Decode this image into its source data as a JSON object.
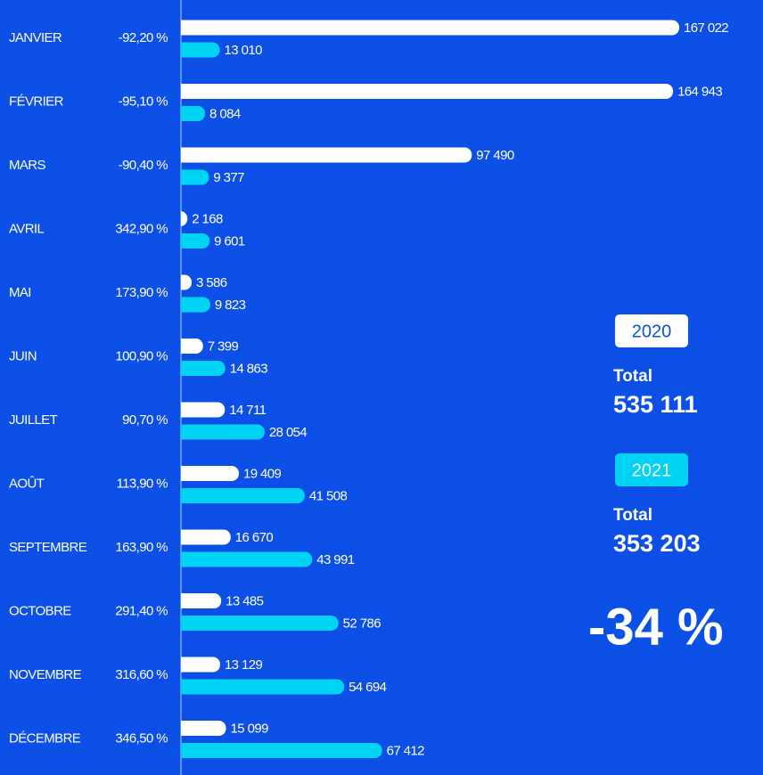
{
  "chart_data": {
    "type": "bar",
    "categories": [
      "JANVIER",
      "FÉVRIER",
      "MARS",
      "AVRIL",
      "MAI",
      "JUIN",
      "JUILLET",
      "AOÛT",
      "SEPTEMBRE",
      "OCTOBRE",
      "NOVEMBRE",
      "DÉCEMBRE"
    ],
    "changes": [
      "-92,20 %",
      "-95,10 %",
      "-90,40 %",
      "342,90 %",
      "173,90 %",
      "100,90 %",
      "90,70 %",
      "113,90 %",
      "163,90 %",
      "291,40 %",
      "316,60 %",
      "346,50 %"
    ],
    "series": [
      {
        "name": "2020",
        "color": "#ffffff",
        "values": [
          167022,
          164943,
          97490,
          2168,
          3586,
          7399,
          14711,
          19409,
          16670,
          13485,
          13129,
          15099
        ],
        "value_labels": [
          "167 022",
          "164 943",
          "97 490",
          "2 168",
          "3 586",
          "7 399",
          "14 711",
          "19 409",
          "16 670",
          "13 485",
          "13 129",
          "15 099"
        ],
        "total_label": "Total",
        "total": "535 111"
      },
      {
        "name": "2021",
        "color": "#00d4f5",
        "values": [
          13010,
          8084,
          9377,
          9601,
          9823,
          14863,
          28054,
          41508,
          43991,
          52786,
          54694,
          67412
        ],
        "value_labels": [
          "13 010",
          "8 084",
          "9 377",
          "9 601",
          "9 823",
          "14 863",
          "28 054",
          "41 508",
          "43 991",
          "52 786",
          "54 694",
          "67 412"
        ],
        "total_label": "Total",
        "total": "353 203"
      }
    ],
    "summary": "-34 %",
    "xlim": [
      0,
      170000
    ]
  }
}
